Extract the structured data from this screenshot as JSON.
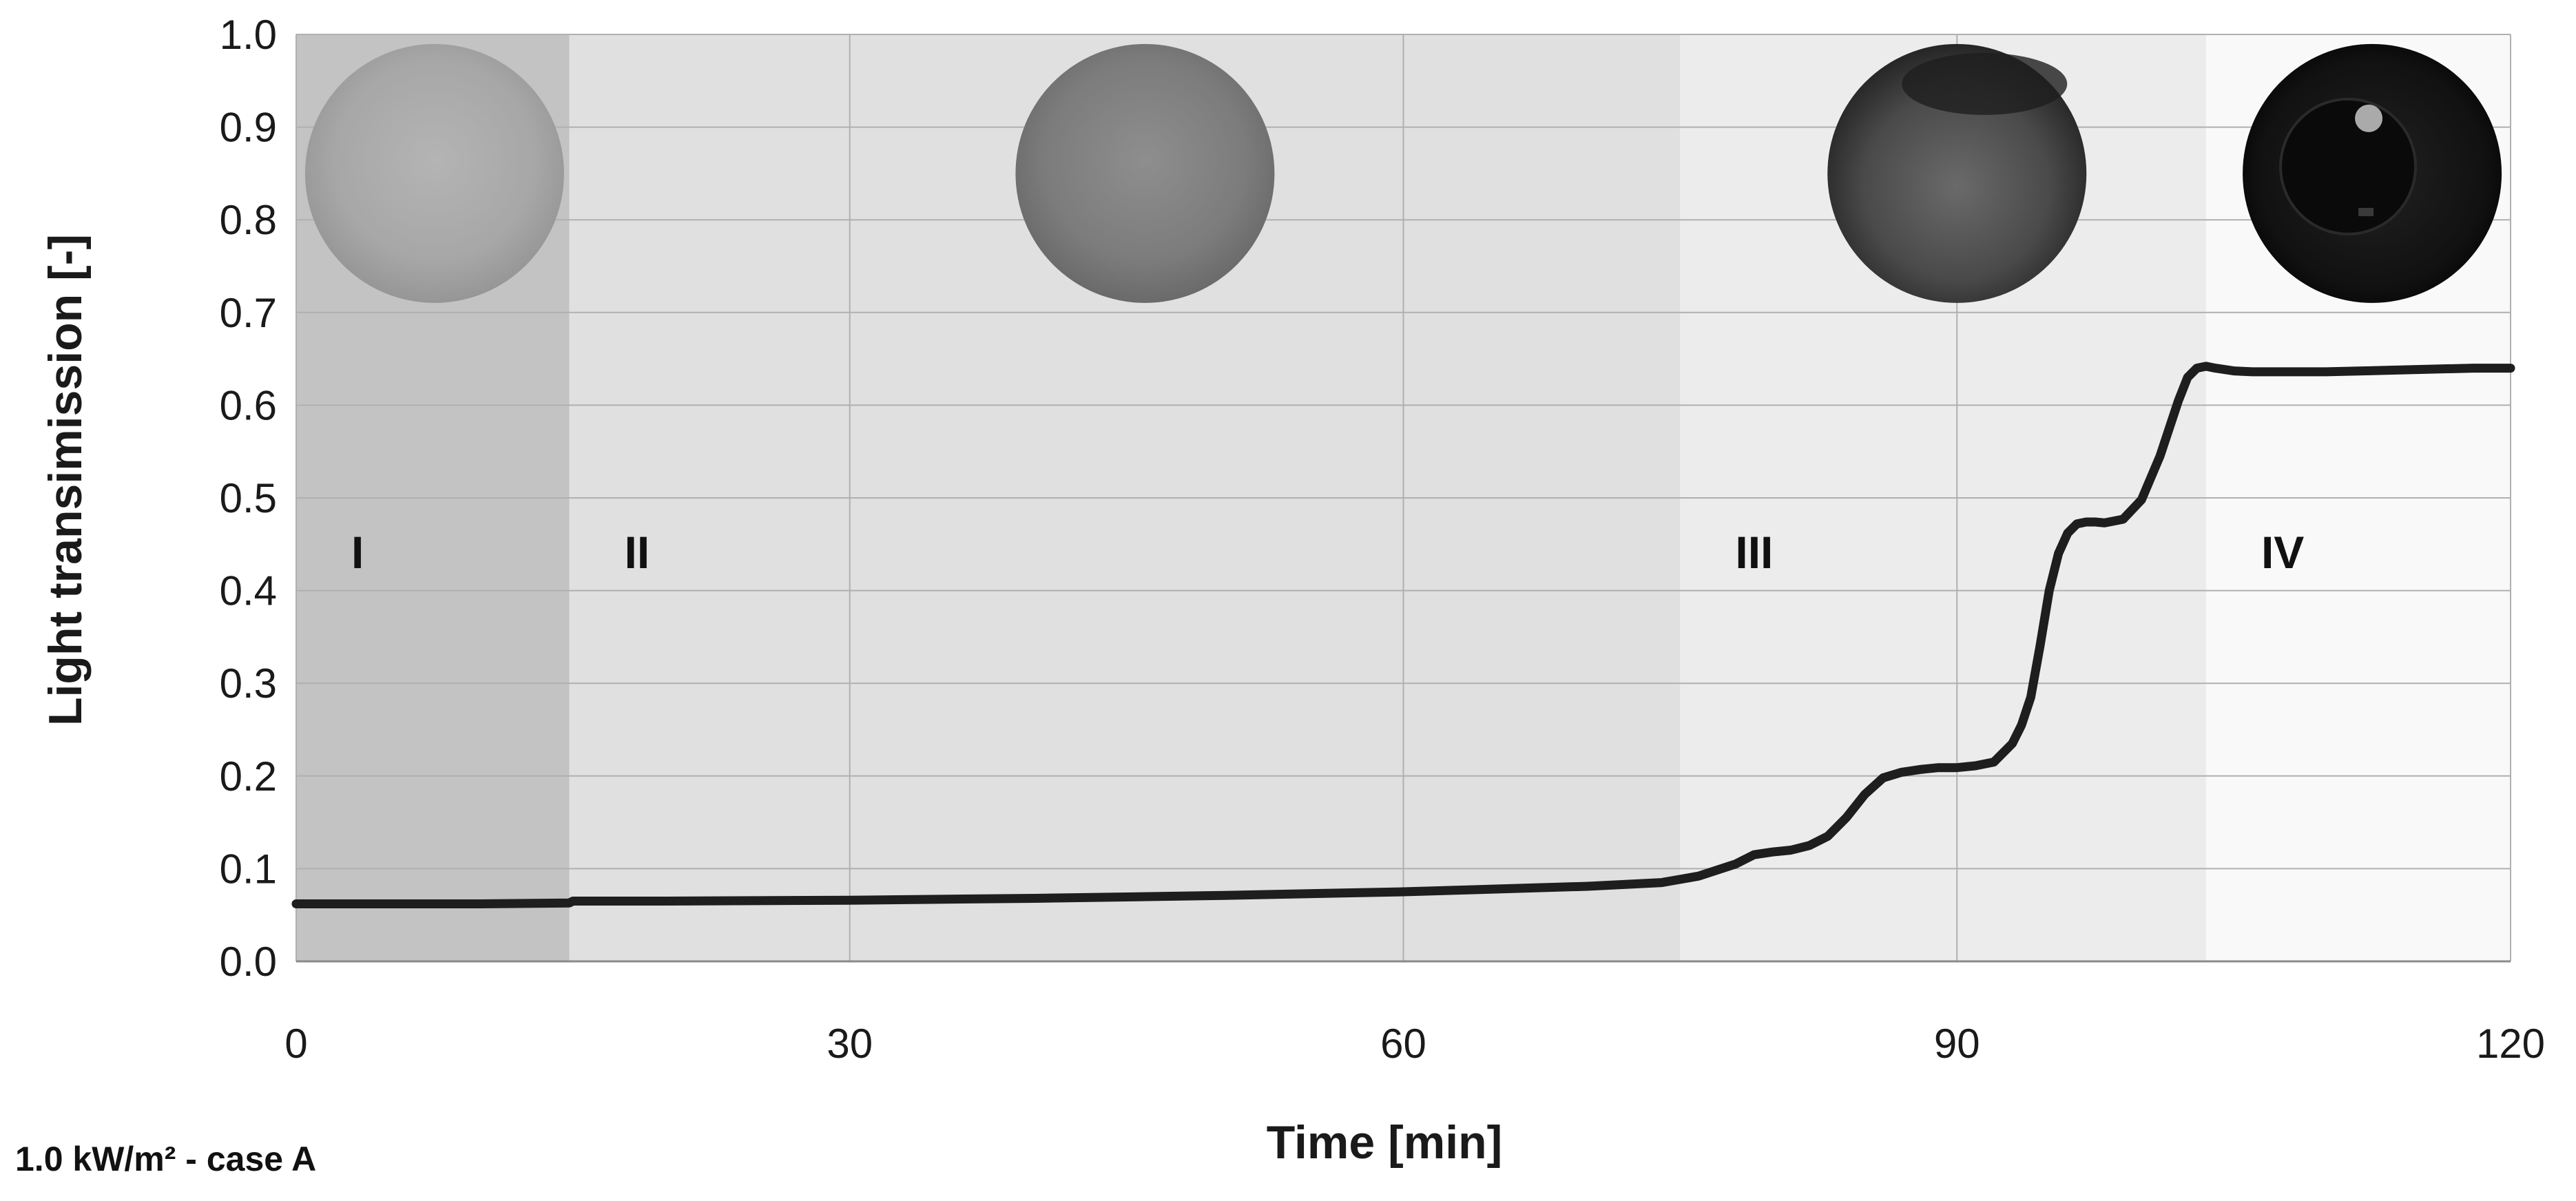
{
  "chart_data": {
    "type": "line",
    "xlabel": "Time [min]",
    "ylabel": "Light transimission [-]",
    "caption": "1.0 kW/m² - case A",
    "xlim": [
      0,
      120
    ],
    "ylim": [
      0,
      1.0
    ],
    "xticks": [
      "0",
      "30",
      "60",
      "90",
      "120"
    ],
    "xtick_values": [
      0,
      30,
      60,
      90,
      120
    ],
    "yticks": [
      "0.0",
      "0.1",
      "0.2",
      "0.3",
      "0.4",
      "0.5",
      "0.6",
      "0.7",
      "0.8",
      "0.9",
      "1.0"
    ],
    "ytick_values": [
      0,
      0.1,
      0.2,
      0.3,
      0.4,
      0.5,
      0.6,
      0.7,
      0.8,
      0.9,
      1.0
    ],
    "grid": true,
    "phases": [
      {
        "label": "I",
        "x_start": 0,
        "x_end": 14.8,
        "shade": "#c3c3c3"
      },
      {
        "label": "II",
        "x_start": 14.8,
        "x_end": 75,
        "shade": "#e0e0e0"
      },
      {
        "label": "III",
        "x_start": 75,
        "x_end": 103.5,
        "shade": "#ececec"
      },
      {
        "label": "IV",
        "x_start": 103.5,
        "x_end": 120,
        "shade": "#f9f9f9"
      }
    ],
    "sample_images": [
      {
        "name": "sample-photo-phase-1",
        "x_center": 7.5,
        "y_center": 0.85,
        "tone": "light"
      },
      {
        "name": "sample-photo-phase-2",
        "x_center": 46,
        "y_center": 0.85,
        "tone": "medium"
      },
      {
        "name": "sample-photo-phase-3",
        "x_center": 90,
        "y_center": 0.85,
        "tone": "dark"
      },
      {
        "name": "sample-photo-phase-4",
        "x_center": 112.5,
        "y_center": 0.85,
        "tone": "black"
      }
    ],
    "series": [
      {
        "color": "#1e1e1e",
        "x": [
          0,
          5,
          10,
          14.8,
          15,
          20,
          30,
          40,
          50,
          60,
          65,
          70,
          74,
          76,
          78,
          79,
          80,
          81,
          82,
          83,
          84,
          85,
          86,
          87,
          88,
          89,
          90,
          91,
          92,
          93,
          93.5,
          94,
          94.5,
          95,
          95.5,
          96,
          96.5,
          97,
          97.5,
          98,
          99,
          100,
          101,
          101.5,
          102,
          102.5,
          103,
          103.5,
          104,
          105,
          106,
          108,
          110,
          112,
          114,
          116,
          118,
          120
        ],
        "y": [
          0.062,
          0.062,
          0.062,
          0.063,
          0.065,
          0.065,
          0.066,
          0.068,
          0.071,
          0.075,
          0.078,
          0.081,
          0.085,
          0.092,
          0.105,
          0.115,
          0.118,
          0.12,
          0.125,
          0.135,
          0.155,
          0.18,
          0.198,
          0.204,
          0.207,
          0.209,
          0.209,
          0.211,
          0.215,
          0.235,
          0.255,
          0.285,
          0.34,
          0.4,
          0.44,
          0.462,
          0.472,
          0.474,
          0.474,
          0.473,
          0.477,
          0.498,
          0.545,
          0.575,
          0.605,
          0.63,
          0.64,
          0.642,
          0.64,
          0.637,
          0.636,
          0.636,
          0.636,
          0.637,
          0.638,
          0.639,
          0.64,
          0.64
        ]
      }
    ]
  }
}
